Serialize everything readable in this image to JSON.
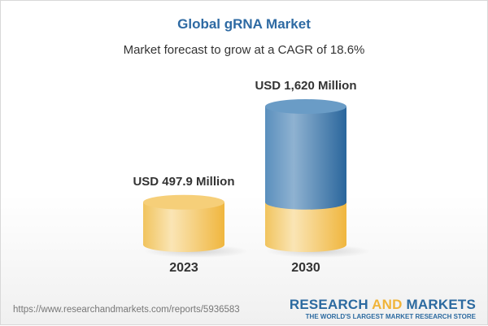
{
  "chart_data": {
    "type": "bar",
    "title": "Global gRNA Market",
    "subtitle": "Market forecast to grow at a CAGR of 18.6%",
    "categories": [
      "2023",
      "2030"
    ],
    "values": [
      497.9,
      1620
    ],
    "value_labels": [
      "USD 497.9 Million",
      "USD 1,620 Million"
    ],
    "unit": "USD Million",
    "colors": {
      "base": "#f3c153",
      "growth": "#3f7cb0",
      "title": "#2e6aa3"
    }
  },
  "footer": {
    "url": "https://www.researchandmarkets.com/reports/5936583",
    "logo_part1": "RESEARCH ",
    "logo_part2": "AND",
    "logo_part3": " MARKETS",
    "tagline": "THE WORLD'S LARGEST MARKET RESEARCH STORE"
  }
}
